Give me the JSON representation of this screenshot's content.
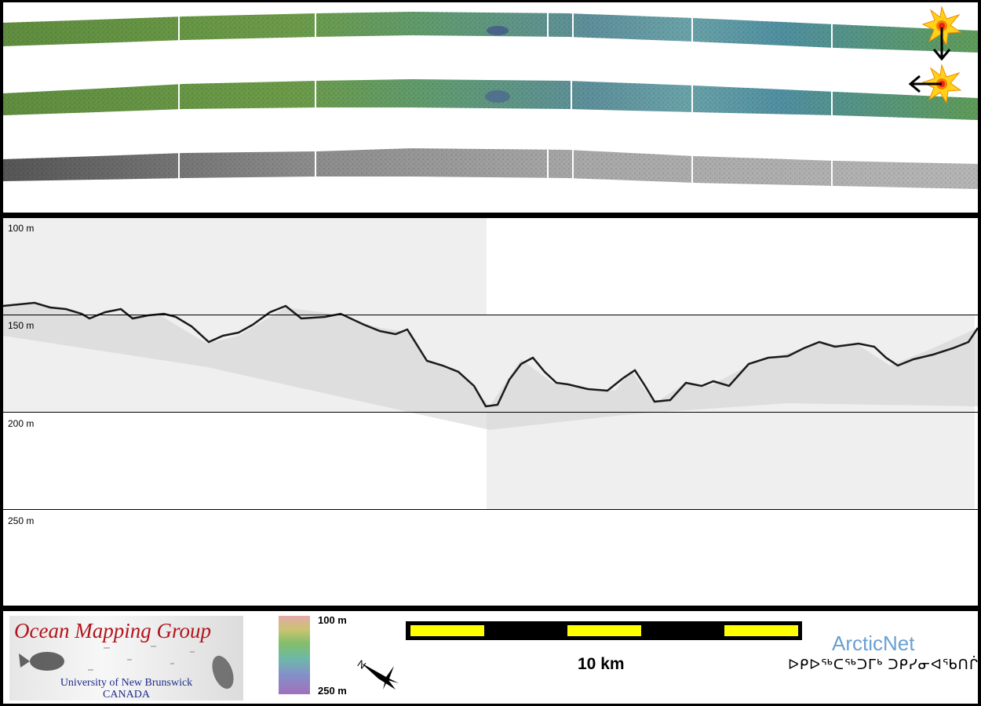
{
  "depth_scale": {
    "labels": [
      "100 m",
      "150 m",
      "200 m",
      "250 m"
    ]
  },
  "legend": {
    "logo": {
      "title": "Ocean Mapping Group",
      "line1": "University of New Brunswick",
      "line2": "CANADA"
    },
    "colorbar": {
      "top_label": "100 m",
      "bottom_label": "250 m"
    },
    "scale_label": "10 km",
    "arcticnet": {
      "title": "ArcticNet",
      "subtitle": "ᐅᑭᐅᖅᑕᖅᑐᒥᒃ ᑐᑭᓯᓂᐊᖃᑎᒌᑦ"
    },
    "north_arrow_label": "N"
  },
  "colors": {
    "frame": "#000000",
    "profile_band": "#efefef",
    "scalebar_fill": "#ffff00",
    "logo_red": "#b3141b",
    "logo_blue": "#1d2a8a",
    "arcticnet_blue": "#6aa0d2",
    "sun": "#ffd21a"
  },
  "icons": [
    "sun-icon",
    "arrow-down-icon",
    "arrow-left-icon",
    "north-arrow-icon",
    "fish-icon"
  ]
}
